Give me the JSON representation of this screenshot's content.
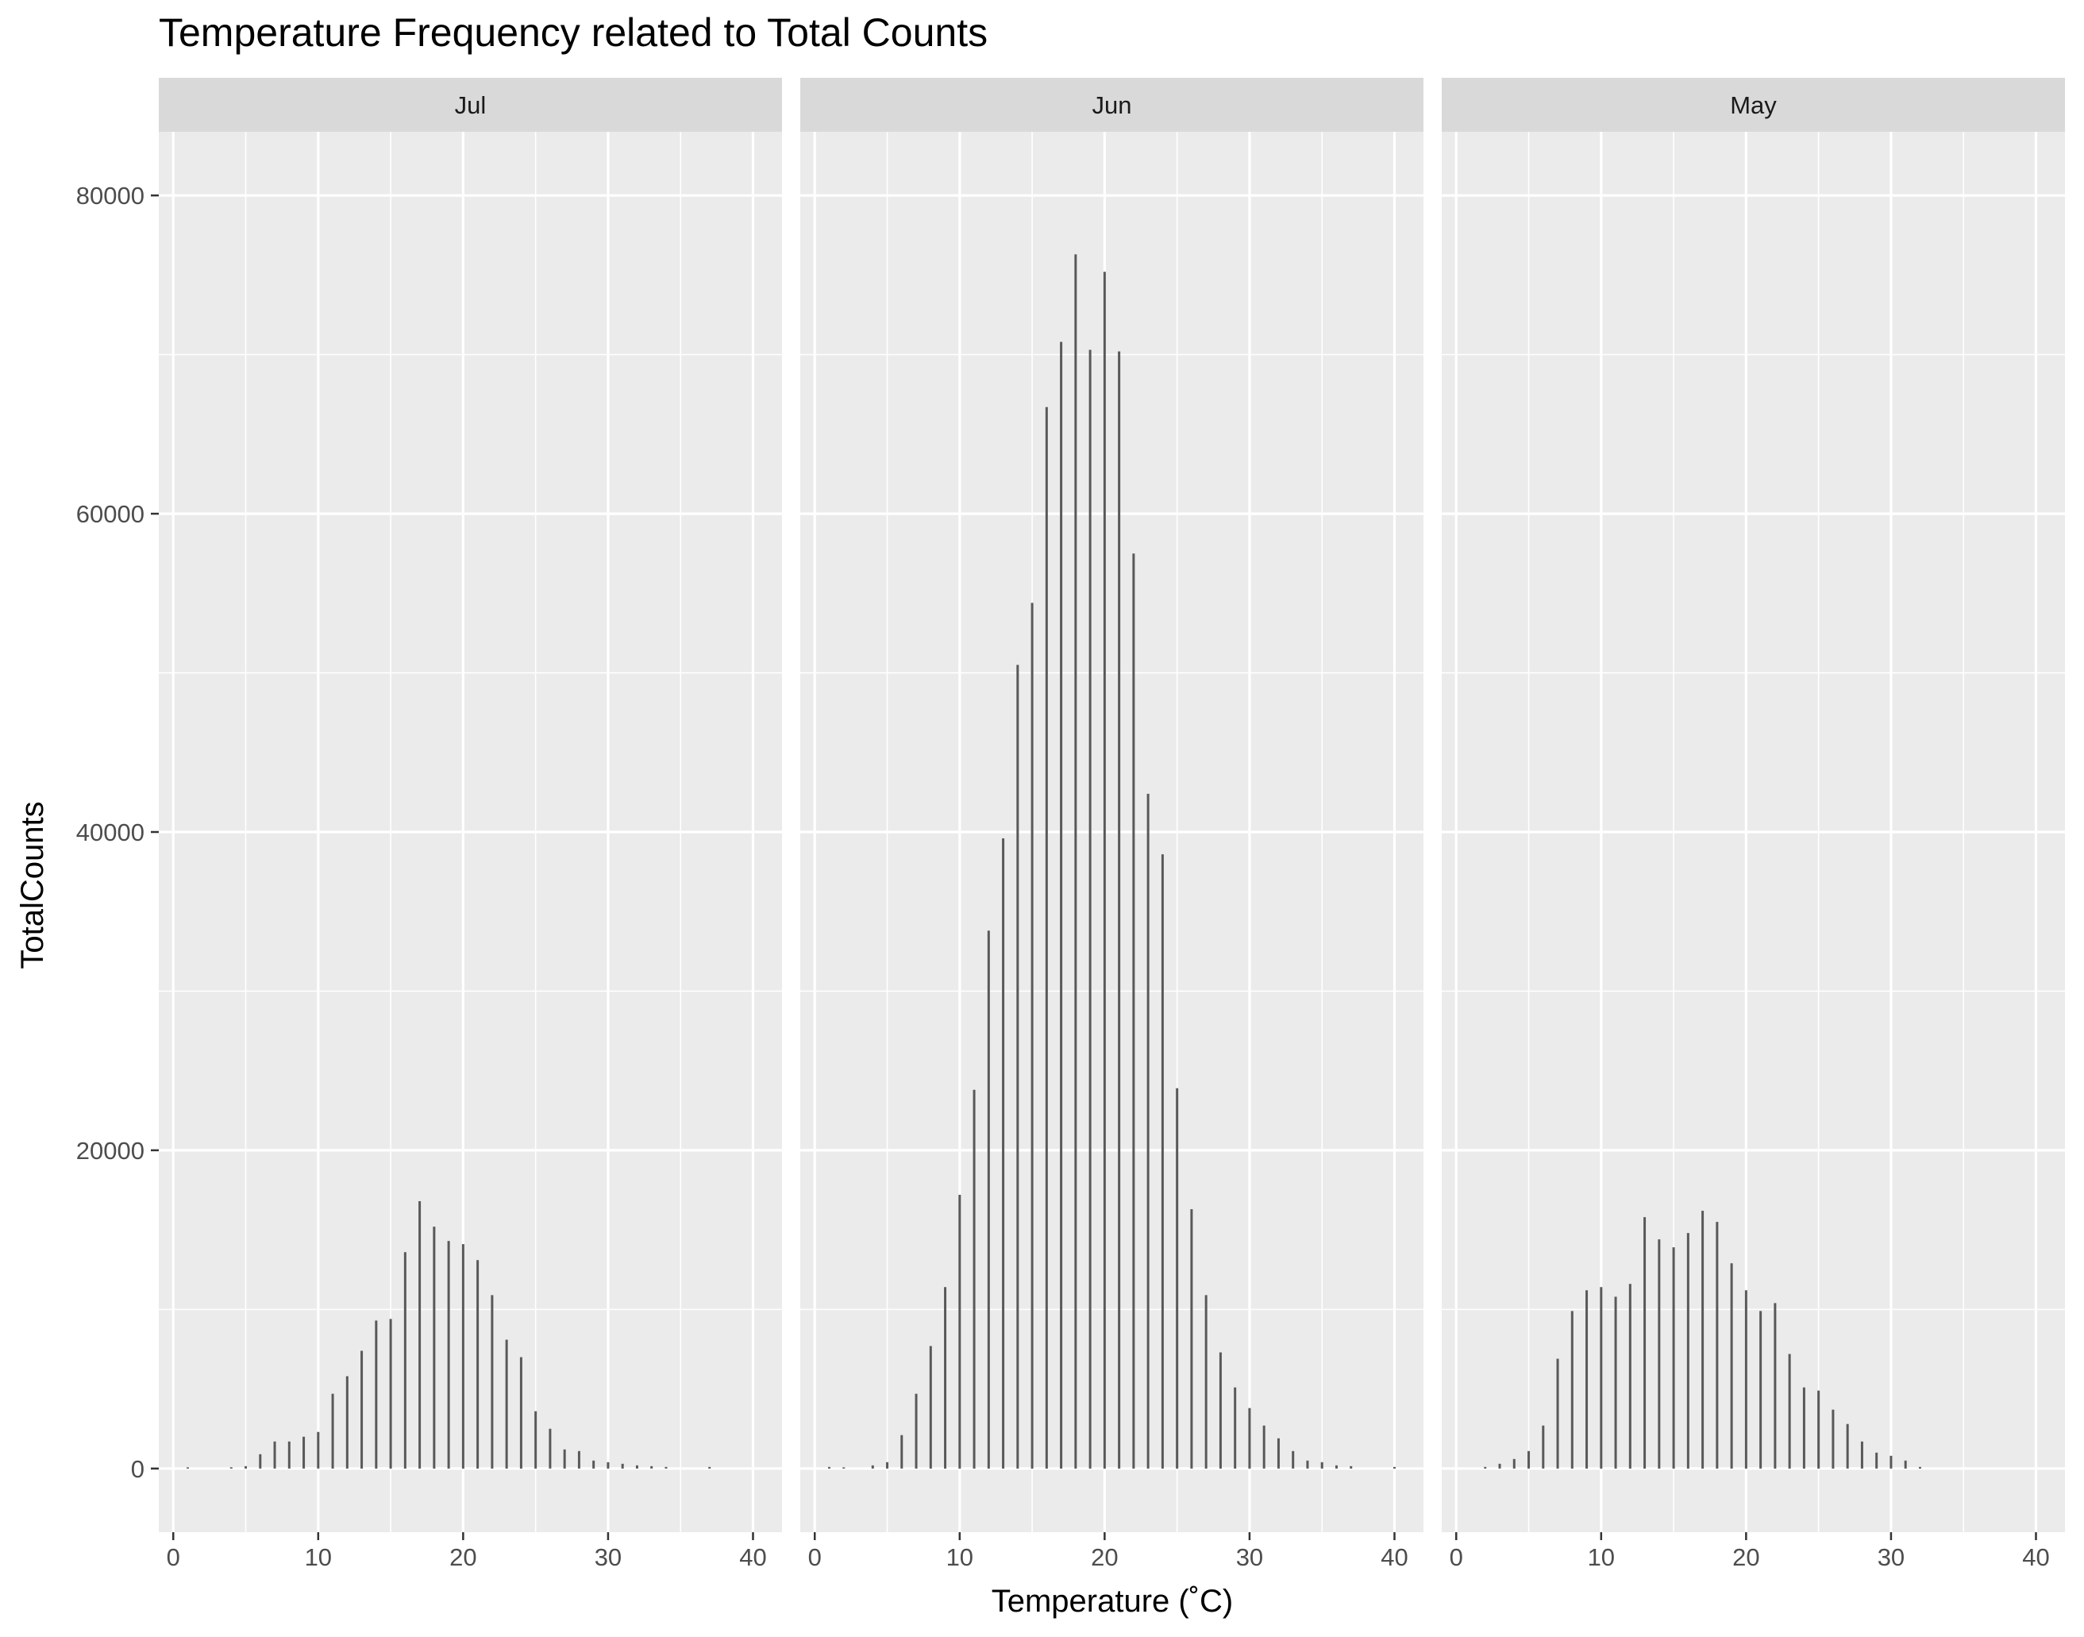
{
  "chart_data": {
    "type": "bar",
    "title": "Temperature Frequency related to Total Counts",
    "xlabel": "Temperature (˚C)",
    "ylabel": "TotalCounts",
    "xlim": [
      -1,
      42
    ],
    "ylim": [
      -4000,
      84000
    ],
    "x_ticks": [
      0,
      10,
      20,
      30,
      40
    ],
    "y_ticks": [
      0,
      20000,
      40000,
      60000,
      80000
    ],
    "grid": true,
    "facet_by": "month",
    "panels": [
      {
        "label": "Jul",
        "x": [
          1,
          4,
          5,
          6,
          7,
          8,
          9,
          10,
          11,
          12,
          13,
          14,
          15,
          16,
          17,
          18,
          19,
          20,
          21,
          22,
          23,
          24,
          25,
          26,
          27,
          28,
          29,
          30,
          31,
          32,
          33,
          34,
          37
        ],
        "values": [
          50,
          80,
          150,
          900,
          1700,
          1700,
          2000,
          2300,
          4700,
          5800,
          7400,
          9300,
          9400,
          13600,
          16800,
          15200,
          14300,
          14100,
          13100,
          10900,
          8100,
          7000,
          3600,
          2500,
          1200,
          1100,
          500,
          400,
          300,
          200,
          150,
          100,
          100
        ]
      },
      {
        "label": "Jun",
        "x": [
          1,
          2,
          4,
          5,
          6,
          7,
          8,
          9,
          10,
          11,
          12,
          13,
          14,
          15,
          16,
          17,
          18,
          19,
          20,
          21,
          22,
          23,
          24,
          25,
          26,
          27,
          28,
          29,
          30,
          31,
          32,
          33,
          34,
          35,
          36,
          37,
          40
        ],
        "values": [
          100,
          50,
          200,
          400,
          2100,
          4700,
          7700,
          11400,
          17200,
          23800,
          33800,
          39600,
          50500,
          54400,
          66700,
          70800,
          76300,
          70300,
          75200,
          70200,
          57500,
          42400,
          38600,
          23900,
          16300,
          10900,
          7300,
          5100,
          3800,
          2700,
          1900,
          1100,
          500,
          400,
          200,
          150,
          100
        ]
      },
      {
        "label": "May",
        "x": [
          2,
          3,
          4,
          5,
          6,
          7,
          8,
          9,
          10,
          11,
          12,
          13,
          14,
          15,
          16,
          17,
          18,
          19,
          20,
          21,
          22,
          23,
          24,
          25,
          26,
          27,
          28,
          29,
          30,
          31,
          32
        ],
        "values": [
          100,
          300,
          600,
          1100,
          2700,
          6900,
          9900,
          11200,
          11400,
          10800,
          11600,
          15800,
          14400,
          13900,
          14800,
          16200,
          15500,
          12900,
          11200,
          9900,
          10400,
          7200,
          5100,
          4900,
          3700,
          2800,
          1700,
          1000,
          800,
          500,
          100
        ]
      }
    ]
  }
}
